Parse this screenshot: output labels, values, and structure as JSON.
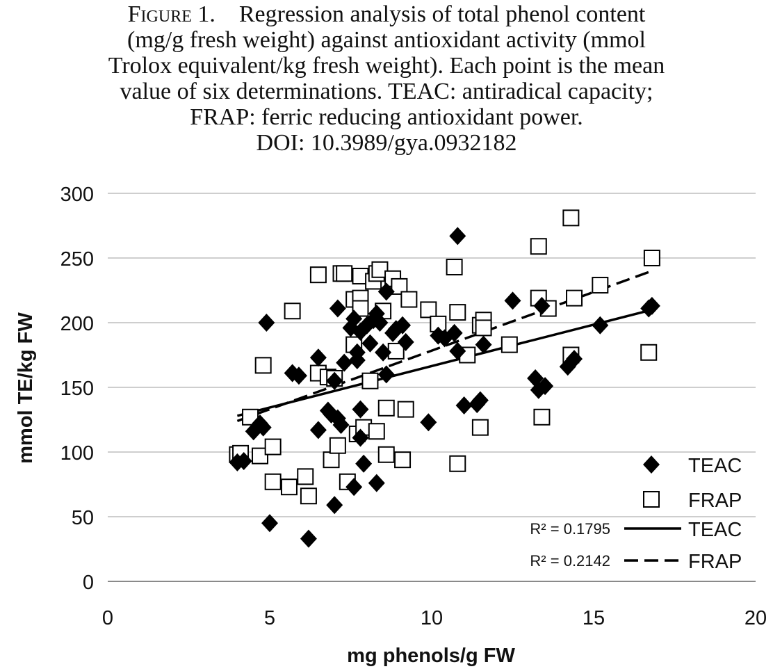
{
  "caption": {
    "figure_label": "Figure 1.",
    "lines": [
      "Regression analysis of total phenol content",
      "(mg/g fresh weight) against antioxidant activity (mmol",
      "Trolox equivalent/kg fresh weight). Each point is the mean",
      "value of six determinations. TEAC: antiradical capacity;",
      "FRAP: ferric reducing antioxidant power.",
      "DOI: 10.3989/gya.0932182"
    ]
  },
  "chart_data": {
    "type": "scatter",
    "title": "",
    "xlabel": "mg phenols/g FW",
    "ylabel": "mmol TE/kg FW",
    "xlim": [
      0,
      20
    ],
    "ylim": [
      0,
      300
    ],
    "x_ticks": [
      0,
      5,
      10,
      15,
      20
    ],
    "y_ticks": [
      0,
      50,
      100,
      150,
      200,
      250,
      300
    ],
    "grid": "horizontal",
    "legend_position": "bottom-right",
    "series": [
      {
        "name": "TEAC",
        "marker": "filled-diamond",
        "color": "#000000",
        "points": [
          [
            4.0,
            92
          ],
          [
            4.2,
            93
          ],
          [
            4.5,
            116
          ],
          [
            4.7,
            122
          ],
          [
            4.8,
            119
          ],
          [
            4.9,
            200
          ],
          [
            5.0,
            45
          ],
          [
            5.7,
            161
          ],
          [
            5.9,
            159
          ],
          [
            6.2,
            33
          ],
          [
            6.5,
            173
          ],
          [
            6.5,
            117
          ],
          [
            6.8,
            132
          ],
          [
            6.9,
            129
          ],
          [
            7.0,
            155
          ],
          [
            7.0,
            59
          ],
          [
            7.1,
            126
          ],
          [
            7.1,
            211
          ],
          [
            7.2,
            121
          ],
          [
            7.3,
            169
          ],
          [
            7.5,
            196
          ],
          [
            7.6,
            203
          ],
          [
            7.6,
            73
          ],
          [
            7.7,
            171
          ],
          [
            7.7,
            177
          ],
          [
            7.8,
            193
          ],
          [
            7.8,
            133
          ],
          [
            7.8,
            111
          ],
          [
            7.9,
            91
          ],
          [
            8.0,
            198
          ],
          [
            8.1,
            184
          ],
          [
            8.2,
            202
          ],
          [
            8.3,
            207
          ],
          [
            8.3,
            76
          ],
          [
            8.4,
            200
          ],
          [
            8.5,
            177
          ],
          [
            8.6,
            224
          ],
          [
            8.6,
            160
          ],
          [
            8.8,
            192
          ],
          [
            8.9,
            195
          ],
          [
            9.1,
            198
          ],
          [
            9.2,
            185
          ],
          [
            9.9,
            123
          ],
          [
            10.2,
            190
          ],
          [
            10.4,
            188
          ],
          [
            10.7,
            192
          ],
          [
            10.8,
            178
          ],
          [
            10.8,
            267
          ],
          [
            11.0,
            136
          ],
          [
            11.4,
            137
          ],
          [
            11.5,
            140
          ],
          [
            11.6,
            183
          ],
          [
            12.5,
            217
          ],
          [
            13.2,
            157
          ],
          [
            13.3,
            148
          ],
          [
            13.4,
            213
          ],
          [
            13.5,
            151
          ],
          [
            14.2,
            166
          ],
          [
            14.4,
            172
          ],
          [
            15.2,
            198
          ],
          [
            16.7,
            211
          ],
          [
            16.8,
            213
          ]
        ]
      },
      {
        "name": "FRAP",
        "marker": "open-square",
        "color": "#000000",
        "points": [
          [
            4.0,
            98
          ],
          [
            4.1,
            99
          ],
          [
            4.4,
            127
          ],
          [
            4.7,
            97
          ],
          [
            4.8,
            167
          ],
          [
            5.1,
            104
          ],
          [
            5.1,
            77
          ],
          [
            5.6,
            73
          ],
          [
            5.7,
            209
          ],
          [
            6.1,
            81
          ],
          [
            6.2,
            66
          ],
          [
            6.5,
            237
          ],
          [
            6.5,
            161
          ],
          [
            6.8,
            158
          ],
          [
            6.9,
            94
          ],
          [
            7.0,
            157
          ],
          [
            7.1,
            105
          ],
          [
            7.2,
            238
          ],
          [
            7.3,
            238
          ],
          [
            7.4,
            77
          ],
          [
            7.6,
            183
          ],
          [
            7.6,
            218
          ],
          [
            7.7,
            114
          ],
          [
            7.8,
            236
          ],
          [
            7.8,
            219
          ],
          [
            7.8,
            211
          ],
          [
            7.9,
            119
          ],
          [
            8.1,
            155
          ],
          [
            8.2,
            232
          ],
          [
            8.3,
            116
          ],
          [
            8.3,
            238
          ],
          [
            8.4,
            241
          ],
          [
            8.5,
            209
          ],
          [
            8.6,
            134
          ],
          [
            8.6,
            98
          ],
          [
            8.8,
            234
          ],
          [
            8.9,
            178
          ],
          [
            9.0,
            228
          ],
          [
            9.1,
            94
          ],
          [
            9.2,
            133
          ],
          [
            9.3,
            218
          ],
          [
            9.9,
            210
          ],
          [
            10.2,
            199
          ],
          [
            10.7,
            243
          ],
          [
            10.8,
            208
          ],
          [
            10.8,
            91
          ],
          [
            11.1,
            175
          ],
          [
            11.5,
            119
          ],
          [
            11.5,
            198
          ],
          [
            11.6,
            202
          ],
          [
            11.6,
            196
          ],
          [
            12.4,
            183
          ],
          [
            13.3,
            259
          ],
          [
            13.3,
            219
          ],
          [
            13.4,
            127
          ],
          [
            13.6,
            211
          ],
          [
            14.3,
            281
          ],
          [
            14.3,
            175
          ],
          [
            14.4,
            219
          ],
          [
            15.2,
            229
          ],
          [
            16.7,
            177
          ],
          [
            16.8,
            250
          ]
        ]
      }
    ],
    "trendlines": [
      {
        "name": "TEAC",
        "style": "solid",
        "r2_label": "R² = 0.1795",
        "x": [
          4.0,
          16.8
        ],
        "y": [
          128,
          210
        ]
      },
      {
        "name": "FRAP",
        "style": "dashed",
        "r2_label": "R² = 0.2142",
        "x": [
          4.0,
          16.8
        ],
        "y": [
          124,
          240
        ]
      }
    ]
  }
}
